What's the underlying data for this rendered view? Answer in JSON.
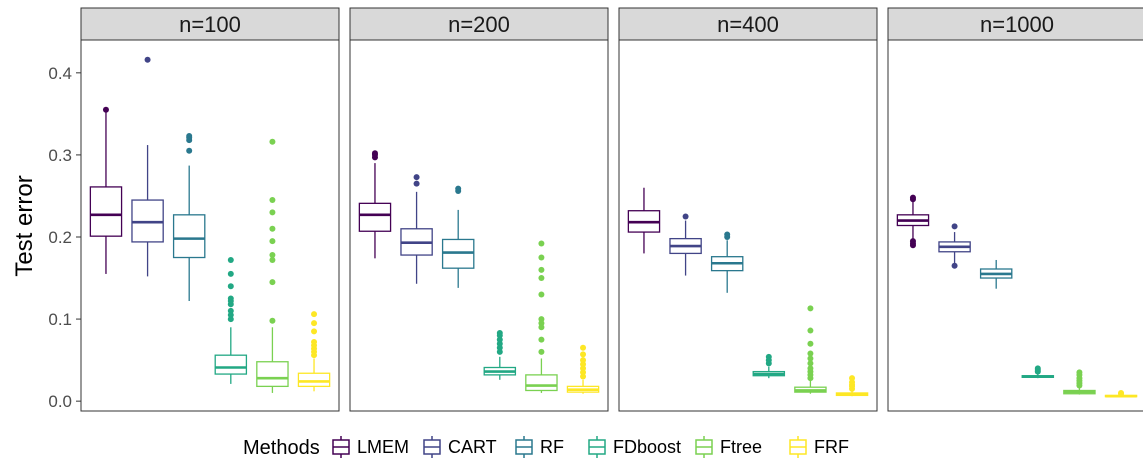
{
  "chart_data": {
    "type": "boxplot",
    "ylabel": "Test error",
    "ylim": [
      -0.012,
      0.44
    ],
    "yticks": [
      0.0,
      0.1,
      0.2,
      0.3,
      0.4
    ],
    "ytick_labels": [
      "0.0",
      "0.1",
      "0.2",
      "0.3",
      "0.4"
    ],
    "grid": false,
    "legend": {
      "title": "Methods",
      "position": "bottom",
      "items": [
        {
          "name": "LMEM",
          "color": "#440154"
        },
        {
          "name": "CART",
          "color": "#414487"
        },
        {
          "name": "RF",
          "color": "#2A788E"
        },
        {
          "name": "FDboost",
          "color": "#22A884"
        },
        {
          "name": "Ftree",
          "color": "#7AD151"
        },
        {
          "name": "FRF",
          "color": "#FDE725"
        }
      ]
    },
    "panels": [
      {
        "label": "n=100",
        "boxes": [
          {
            "method": "LMEM",
            "min": 0.155,
            "q1": 0.201,
            "median": 0.227,
            "q3": 0.261,
            "max": 0.352,
            "outliers": [
              0.355
            ]
          },
          {
            "method": "CART",
            "min": 0.152,
            "q1": 0.194,
            "median": 0.218,
            "q3": 0.245,
            "max": 0.312,
            "outliers": [
              0.416
            ]
          },
          {
            "method": "RF",
            "min": 0.122,
            "q1": 0.175,
            "median": 0.198,
            "q3": 0.227,
            "max": 0.287,
            "outliers": [
              0.305,
              0.318,
              0.321,
              0.323
            ]
          },
          {
            "method": "FDboost",
            "min": 0.021,
            "q1": 0.033,
            "median": 0.041,
            "q3": 0.056,
            "max": 0.09,
            "outliers": [
              0.1,
              0.105,
              0.11,
              0.118,
              0.122,
              0.125,
              0.14,
              0.155,
              0.172
            ]
          },
          {
            "method": "Ftree",
            "min": 0.01,
            "q1": 0.018,
            "median": 0.028,
            "q3": 0.048,
            "max": 0.09,
            "outliers": [
              0.098,
              0.145,
              0.172,
              0.178,
              0.195,
              0.21,
              0.23,
              0.245,
              0.316
            ]
          },
          {
            "method": "FRF",
            "min": 0.012,
            "q1": 0.018,
            "median": 0.024,
            "q3": 0.034,
            "max": 0.052,
            "outliers": [
              0.056,
              0.06,
              0.064,
              0.068,
              0.072,
              0.085,
              0.095,
              0.106
            ]
          }
        ]
      },
      {
        "label": "n=200",
        "boxes": [
          {
            "method": "LMEM",
            "min": 0.174,
            "q1": 0.207,
            "median": 0.227,
            "q3": 0.241,
            "max": 0.29,
            "outliers": [
              0.297,
              0.3,
              0.302
            ]
          },
          {
            "method": "CART",
            "min": 0.143,
            "q1": 0.178,
            "median": 0.193,
            "q3": 0.21,
            "max": 0.255,
            "outliers": [
              0.265,
              0.273
            ]
          },
          {
            "method": "RF",
            "min": 0.138,
            "q1": 0.162,
            "median": 0.181,
            "q3": 0.197,
            "max": 0.233,
            "outliers": [
              0.256,
              0.259
            ]
          },
          {
            "method": "FDboost",
            "min": 0.026,
            "q1": 0.032,
            "median": 0.036,
            "q3": 0.041,
            "max": 0.054,
            "outliers": [
              0.06,
              0.065,
              0.07,
              0.075,
              0.08,
              0.083
            ]
          },
          {
            "method": "Ftree",
            "min": 0.01,
            "q1": 0.013,
            "median": 0.019,
            "q3": 0.032,
            "max": 0.052,
            "outliers": [
              0.06,
              0.075,
              0.09,
              0.095,
              0.1,
              0.13,
              0.15,
              0.16,
              0.175,
              0.192
            ]
          },
          {
            "method": "FRF",
            "min": 0.009,
            "q1": 0.011,
            "median": 0.014,
            "q3": 0.018,
            "max": 0.026,
            "outliers": [
              0.03,
              0.035,
              0.04,
              0.045,
              0.05,
              0.057,
              0.065
            ]
          }
        ]
      },
      {
        "label": "n=400",
        "boxes": [
          {
            "method": "LMEM",
            "min": 0.18,
            "q1": 0.206,
            "median": 0.218,
            "q3": 0.232,
            "max": 0.26,
            "outliers": []
          },
          {
            "method": "CART",
            "min": 0.153,
            "q1": 0.18,
            "median": 0.189,
            "q3": 0.198,
            "max": 0.22,
            "outliers": [
              0.225
            ]
          },
          {
            "method": "RF",
            "min": 0.132,
            "q1": 0.159,
            "median": 0.168,
            "q3": 0.176,
            "max": 0.196,
            "outliers": [
              0.2,
              0.203
            ]
          },
          {
            "method": "FDboost",
            "min": 0.028,
            "q1": 0.031,
            "median": 0.033,
            "q3": 0.036,
            "max": 0.042,
            "outliers": [
              0.046,
              0.05,
              0.054
            ]
          },
          {
            "method": "Ftree",
            "min": 0.009,
            "q1": 0.011,
            "median": 0.013,
            "q3": 0.017,
            "max": 0.025,
            "outliers": [
              0.028,
              0.032,
              0.036,
              0.04,
              0.046,
              0.052,
              0.058,
              0.07,
              0.086,
              0.113
            ]
          },
          {
            "method": "FRF",
            "min": 0.006,
            "q1": 0.007,
            "median": 0.008,
            "q3": 0.01,
            "max": 0.012,
            "outliers": [
              0.015,
              0.018,
              0.02,
              0.023,
              0.028
            ]
          }
        ]
      },
      {
        "label": "n=1000",
        "boxes": [
          {
            "method": "LMEM",
            "min": 0.197,
            "q1": 0.214,
            "median": 0.22,
            "q3": 0.227,
            "max": 0.243,
            "outliers": [
              0.19,
              0.192,
              0.195,
              0.246,
              0.248
            ]
          },
          {
            "method": "CART",
            "min": 0.168,
            "q1": 0.182,
            "median": 0.188,
            "q3": 0.194,
            "max": 0.206,
            "outliers": [
              0.165,
              0.213
            ]
          },
          {
            "method": "RF",
            "min": 0.137,
            "q1": 0.15,
            "median": 0.155,
            "q3": 0.161,
            "max": 0.172,
            "outliers": []
          },
          {
            "method": "FDboost",
            "min": 0.028,
            "q1": 0.029,
            "median": 0.03,
            "q3": 0.031,
            "max": 0.033,
            "outliers": [
              0.036,
              0.038,
              0.04
            ]
          },
          {
            "method": "Ftree",
            "min": 0.008,
            "q1": 0.009,
            "median": 0.011,
            "q3": 0.013,
            "max": 0.016,
            "outliers": [
              0.019,
              0.022,
              0.025,
              0.028,
              0.032,
              0.035
            ]
          },
          {
            "method": "FRF",
            "min": 0.005,
            "q1": 0.0055,
            "median": 0.006,
            "q3": 0.007,
            "max": 0.008,
            "outliers": [
              0.009,
              0.01
            ]
          }
        ]
      }
    ]
  }
}
